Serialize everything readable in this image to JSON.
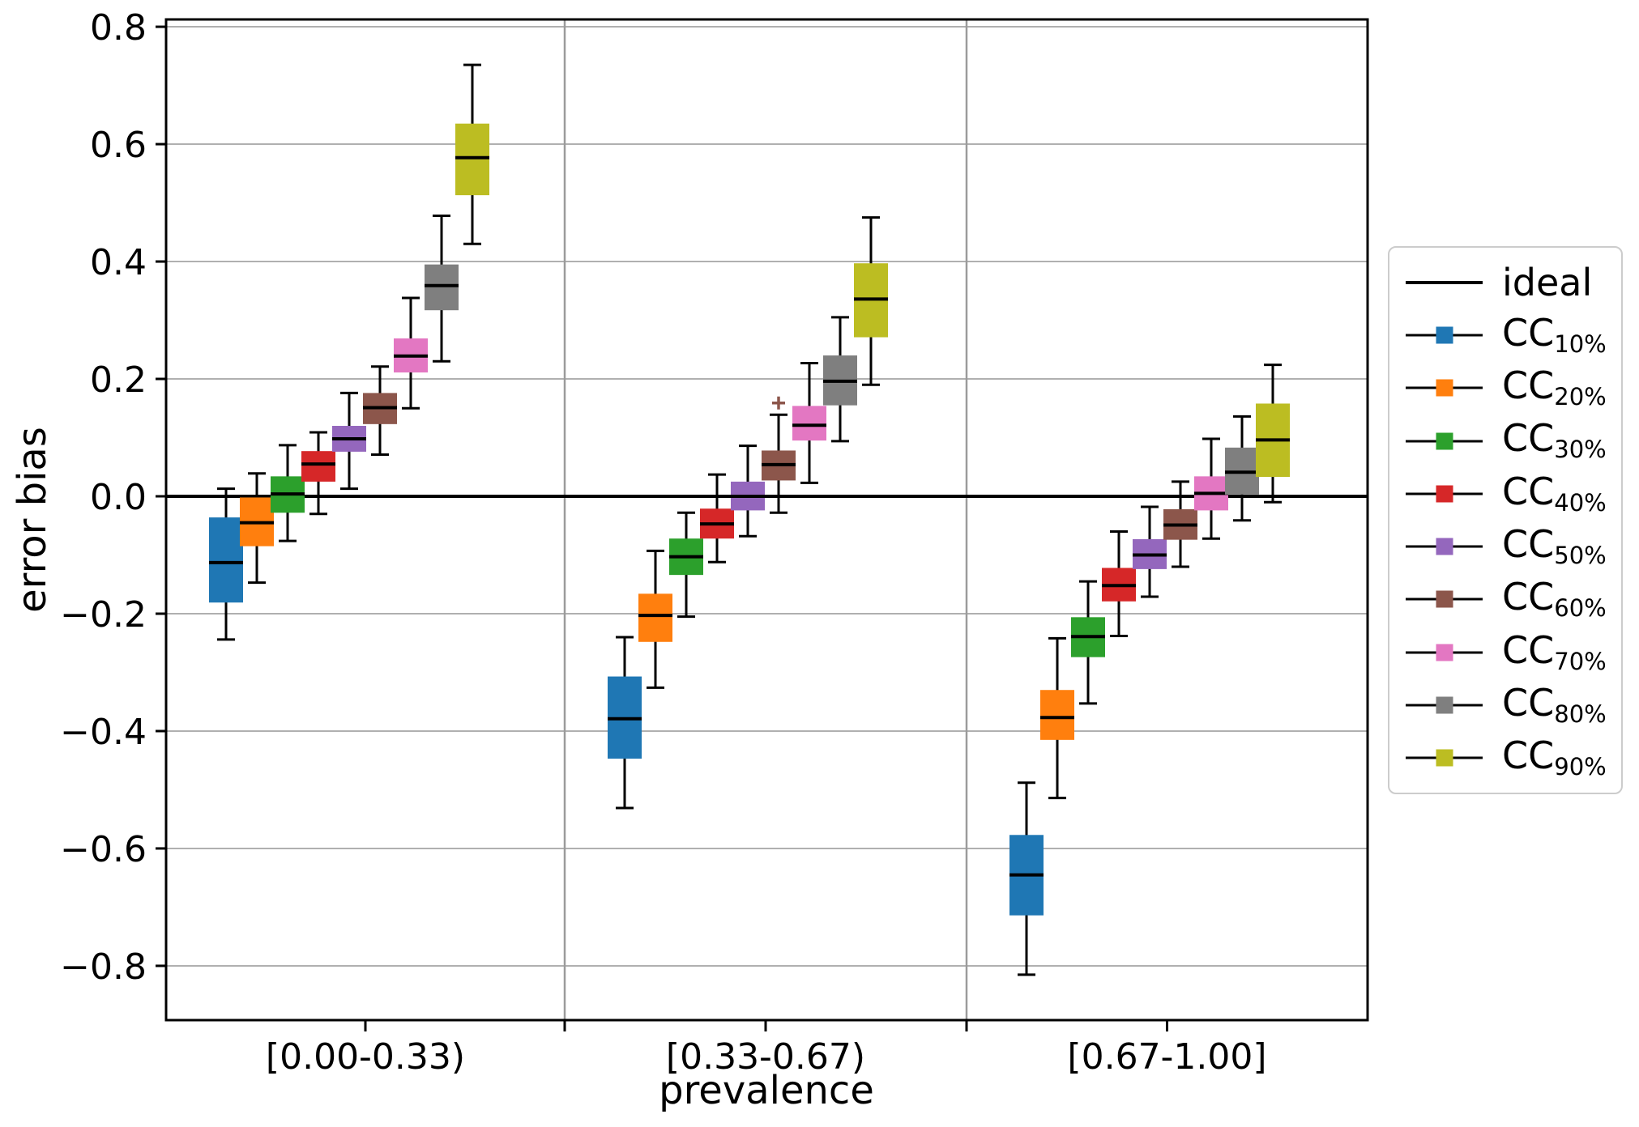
{
  "chart_data": {
    "type": "box",
    "title": "",
    "xlabel": "prevalence",
    "ylabel": "error bias",
    "categories": [
      "[0.00-0.33)",
      "[0.33-0.67)",
      "[0.67-1.00]"
    ],
    "ylim": [
      -0.8925,
      0.8125
    ],
    "grid": "horizontal",
    "yticks": [
      {
        "value": 0.8,
        "label": "0.8"
      },
      {
        "value": 0.6,
        "label": "0.6"
      },
      {
        "value": 0.4,
        "label": "0.4"
      },
      {
        "value": 0.2,
        "label": "0.2"
      },
      {
        "value": 0.0,
        "label": "0.0"
      },
      {
        "value": -0.2,
        "label": "−0.2"
      },
      {
        "value": -0.4,
        "label": "−0.4"
      },
      {
        "value": -0.6,
        "label": "−0.6"
      },
      {
        "value": -0.8,
        "label": "−0.8"
      }
    ],
    "ideal_line": {
      "label": "ideal",
      "y": 0.0,
      "color": "#000000"
    },
    "legend": {
      "position": "center right",
      "entries": [
        {
          "kind": "line",
          "label": "ideal"
        },
        {
          "kind": "marker",
          "label": "CC",
          "subscript": "10%",
          "color": "#1f77b4"
        },
        {
          "kind": "marker",
          "label": "CC",
          "subscript": "20%",
          "color": "#ff7f0e"
        },
        {
          "kind": "marker",
          "label": "CC",
          "subscript": "30%",
          "color": "#2ca02c"
        },
        {
          "kind": "marker",
          "label": "CC",
          "subscript": "40%",
          "color": "#d62728"
        },
        {
          "kind": "marker",
          "label": "CC",
          "subscript": "50%",
          "color": "#9467bd"
        },
        {
          "kind": "marker",
          "label": "CC",
          "subscript": "60%",
          "color": "#8c564b"
        },
        {
          "kind": "marker",
          "label": "CC",
          "subscript": "70%",
          "color": "#e377c2"
        },
        {
          "kind": "marker",
          "label": "CC",
          "subscript": "80%",
          "color": "#7f7f7f"
        },
        {
          "kind": "marker",
          "label": "CC",
          "subscript": "90%",
          "color": "#bcbd22"
        }
      ]
    },
    "series": [
      {
        "label": "CC",
        "subscript": "10%",
        "color": "#1f77b4",
        "boxes": [
          {
            "whislo": -0.244,
            "q1": -0.181,
            "med": -0.113,
            "q3": -0.036,
            "whishi": 0.013,
            "fliers": []
          },
          {
            "whislo": -0.531,
            "q1": -0.447,
            "med": -0.379,
            "q3": -0.307,
            "whishi": -0.24,
            "fliers": []
          },
          {
            "whislo": -0.815,
            "q1": -0.714,
            "med": -0.645,
            "q3": -0.577,
            "whishi": -0.488,
            "fliers": []
          }
        ]
      },
      {
        "label": "CC",
        "subscript": "20%",
        "color": "#ff7f0e",
        "boxes": [
          {
            "whislo": -0.147,
            "q1": -0.085,
            "med": -0.045,
            "q3": -0.002,
            "whishi": 0.039,
            "fliers": []
          },
          {
            "whislo": -0.326,
            "q1": -0.248,
            "med": -0.203,
            "q3": -0.166,
            "whishi": -0.093,
            "fliers": []
          },
          {
            "whislo": -0.514,
            "q1": -0.415,
            "med": -0.377,
            "q3": -0.33,
            "whishi": -0.242,
            "fliers": []
          }
        ]
      },
      {
        "label": "CC",
        "subscript": "30%",
        "color": "#2ca02c",
        "boxes": [
          {
            "whislo": -0.076,
            "q1": -0.028,
            "med": 0.004,
            "q3": 0.034,
            "whishi": 0.087,
            "fliers": []
          },
          {
            "whislo": -0.205,
            "q1": -0.134,
            "med": -0.103,
            "q3": -0.072,
            "whishi": -0.028,
            "fliers": []
          },
          {
            "whislo": -0.353,
            "q1": -0.274,
            "med": -0.239,
            "q3": -0.206,
            "whishi": -0.145,
            "fliers": []
          }
        ]
      },
      {
        "label": "CC",
        "subscript": "40%",
        "color": "#d62728",
        "boxes": [
          {
            "whislo": -0.03,
            "q1": 0.025,
            "med": 0.055,
            "q3": 0.077,
            "whishi": 0.109,
            "fliers": []
          },
          {
            "whislo": -0.112,
            "q1": -0.072,
            "med": -0.047,
            "q3": -0.021,
            "whishi": 0.037,
            "fliers": []
          },
          {
            "whislo": -0.238,
            "q1": -0.179,
            "med": -0.152,
            "q3": -0.122,
            "whishi": -0.06,
            "fliers": []
          }
        ]
      },
      {
        "label": "CC",
        "subscript": "50%",
        "color": "#9467bd",
        "boxes": [
          {
            "whislo": 0.013,
            "q1": 0.076,
            "med": 0.098,
            "q3": 0.12,
            "whishi": 0.176,
            "fliers": []
          },
          {
            "whislo": -0.068,
            "q1": -0.024,
            "med": 0.0,
            "q3": 0.025,
            "whishi": 0.086,
            "fliers": []
          },
          {
            "whislo": -0.171,
            "q1": -0.124,
            "med": -0.1,
            "q3": -0.073,
            "whishi": -0.018,
            "fliers": []
          }
        ]
      },
      {
        "label": "CC",
        "subscript": "60%",
        "color": "#8c564b",
        "boxes": [
          {
            "whislo": 0.071,
            "q1": 0.123,
            "med": 0.151,
            "q3": 0.176,
            "whishi": 0.221,
            "fliers": []
          },
          {
            "whislo": -0.028,
            "q1": 0.027,
            "med": 0.054,
            "q3": 0.078,
            "whishi": 0.139,
            "fliers": [
              0.159
            ]
          },
          {
            "whislo": -0.12,
            "q1": -0.074,
            "med": -0.049,
            "q3": -0.022,
            "whishi": 0.025,
            "fliers": []
          }
        ]
      },
      {
        "label": "CC",
        "subscript": "70%",
        "color": "#e377c2",
        "boxes": [
          {
            "whislo": 0.15,
            "q1": 0.211,
            "med": 0.239,
            "q3": 0.269,
            "whishi": 0.338,
            "fliers": []
          },
          {
            "whislo": 0.023,
            "q1": 0.095,
            "med": 0.121,
            "q3": 0.154,
            "whishi": 0.227,
            "fliers": []
          },
          {
            "whislo": -0.072,
            "q1": -0.024,
            "med": 0.005,
            "q3": 0.034,
            "whishi": 0.098,
            "fliers": []
          }
        ]
      },
      {
        "label": "CC",
        "subscript": "80%",
        "color": "#7f7f7f",
        "boxes": [
          {
            "whislo": 0.23,
            "q1": 0.317,
            "med": 0.359,
            "q3": 0.395,
            "whishi": 0.478,
            "fliers": []
          },
          {
            "whislo": 0.094,
            "q1": 0.155,
            "med": 0.196,
            "q3": 0.24,
            "whishi": 0.305,
            "fliers": []
          },
          {
            "whislo": -0.041,
            "q1": 0.003,
            "med": 0.041,
            "q3": 0.083,
            "whishi": 0.136,
            "fliers": []
          }
        ]
      },
      {
        "label": "CC",
        "subscript": "90%",
        "color": "#bcbd22",
        "boxes": [
          {
            "whislo": 0.43,
            "q1": 0.513,
            "med": 0.577,
            "q3": 0.635,
            "whishi": 0.735,
            "fliers": []
          },
          {
            "whislo": 0.19,
            "q1": 0.271,
            "med": 0.336,
            "q3": 0.397,
            "whishi": 0.475,
            "fliers": []
          },
          {
            "whislo": -0.01,
            "q1": 0.033,
            "med": 0.096,
            "q3": 0.158,
            "whishi": 0.224,
            "fliers": []
          }
        ]
      }
    ],
    "flier_marker": {
      "shape": "plus",
      "color": "#8c564b"
    },
    "colors": {
      "gridline": "#b0b0b0",
      "panel_divider": "#9b9b9b",
      "spine": "#000000",
      "box_median": "#000000",
      "whisker": "#000000"
    }
  }
}
